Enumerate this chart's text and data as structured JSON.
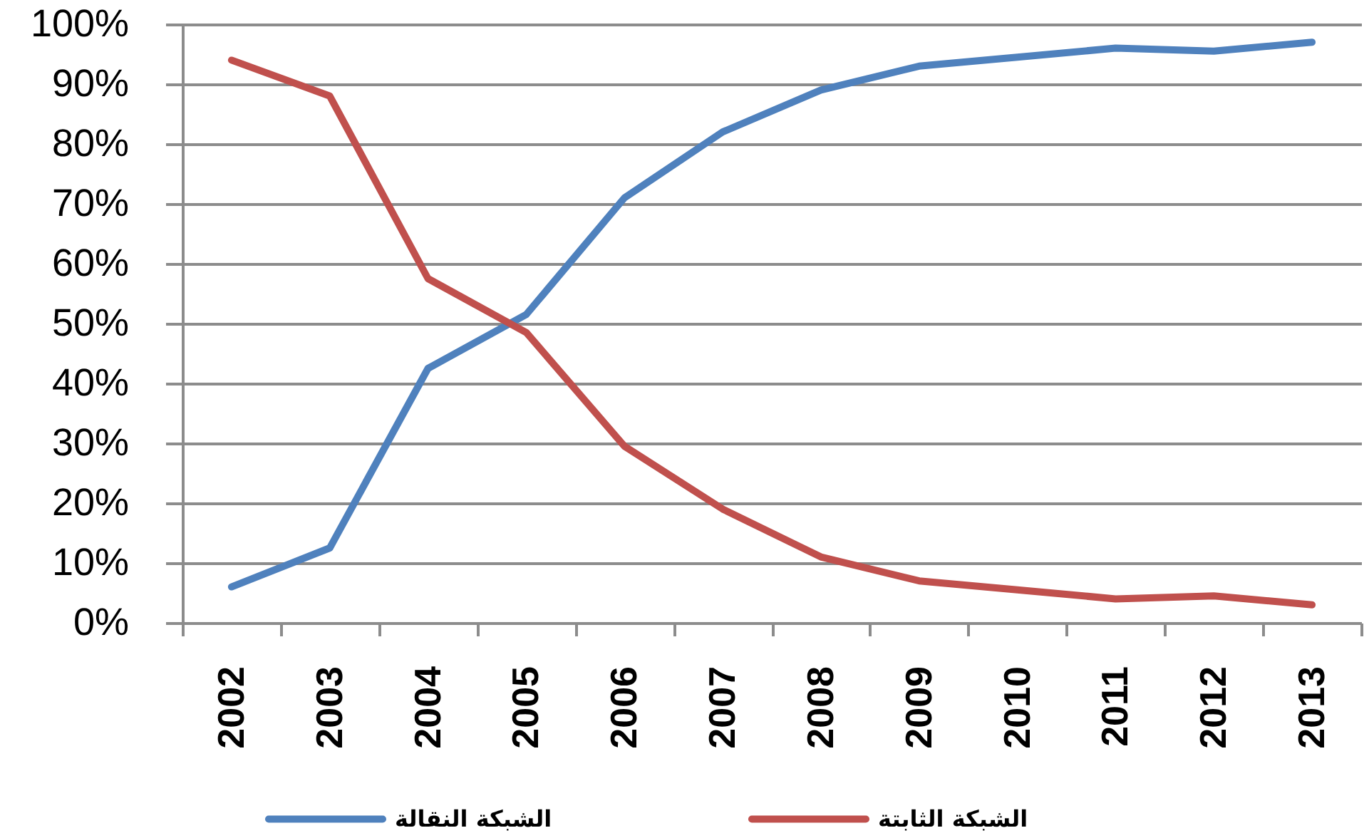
{
  "chart_data": {
    "type": "line",
    "categories": [
      "2002",
      "2003",
      "2004",
      "2005",
      "2006",
      "2007",
      "2008",
      "2009",
      "2010",
      "2011",
      "2012",
      "2013"
    ],
    "series": [
      {
        "name": "الشبكة النقالة",
        "color": "#4f81bd",
        "values": [
          6,
          12.5,
          42.5,
          51.5,
          71,
          82,
          89,
          93,
          94.5,
          96,
          95.5,
          97
        ]
      },
      {
        "name": "الشبكة الثابتة",
        "color": "#c0504d",
        "values": [
          94,
          88,
          57.5,
          48.5,
          29.5,
          19,
          11,
          7,
          5.5,
          4,
          4.5,
          3
        ]
      }
    ],
    "ylim": [
      0,
      100
    ],
    "yticks": [
      {
        "value": 0,
        "label": "0%"
      },
      {
        "value": 10,
        "label": "10%"
      },
      {
        "value": 20,
        "label": "20%"
      },
      {
        "value": 30,
        "label": "30%"
      },
      {
        "value": 40,
        "label": "40%"
      },
      {
        "value": 50,
        "label": "50%"
      },
      {
        "value": 60,
        "label": "60%"
      },
      {
        "value": 70,
        "label": "70%"
      },
      {
        "value": 80,
        "label": "80%"
      },
      {
        "value": 90,
        "label": "90%"
      },
      {
        "value": 100,
        "label": "100%"
      }
    ],
    "grid": "y",
    "legend": "bottom"
  }
}
